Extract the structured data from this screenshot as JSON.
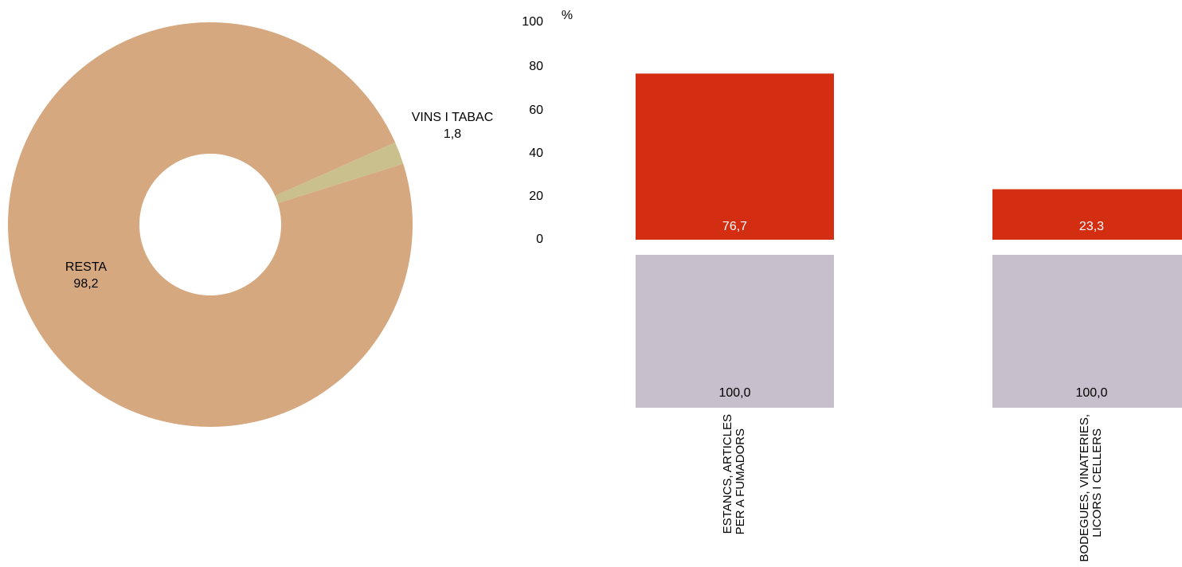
{
  "chart_data": [
    {
      "type": "pie",
      "donut": true,
      "slices": [
        {
          "label": "RESTA",
          "value": 98.2,
          "value_label": "98,2",
          "color": "#d5a880"
        },
        {
          "label": "VINS I TABAC",
          "value": 1.8,
          "value_label": "1,8",
          "color": "#c9c08e"
        }
      ]
    },
    {
      "type": "bar",
      "unit_label": "%",
      "yticks": [
        "100",
        "80",
        "60",
        "40",
        "20",
        "0"
      ],
      "ylim": [
        0,
        100
      ],
      "categories": [
        {
          "line1": "ESTANCS, ARTICLES",
          "line2": "PER A FUMADORS"
        },
        {
          "line1": "BODEGUES, VINATERIES,",
          "line2": "LICORS I CELLERS"
        }
      ],
      "series": [
        {
          "values": [
            76.7,
            23.3
          ],
          "value_labels": [
            "76,7",
            "23,3"
          ],
          "color": "#d42e12",
          "label_color": "#ffffff"
        },
        {
          "values": [
            100.0,
            100.0
          ],
          "value_labels": [
            "100,0",
            "100,0"
          ],
          "color": "#c7bfcc",
          "label_color": "#000000"
        }
      ]
    }
  ]
}
